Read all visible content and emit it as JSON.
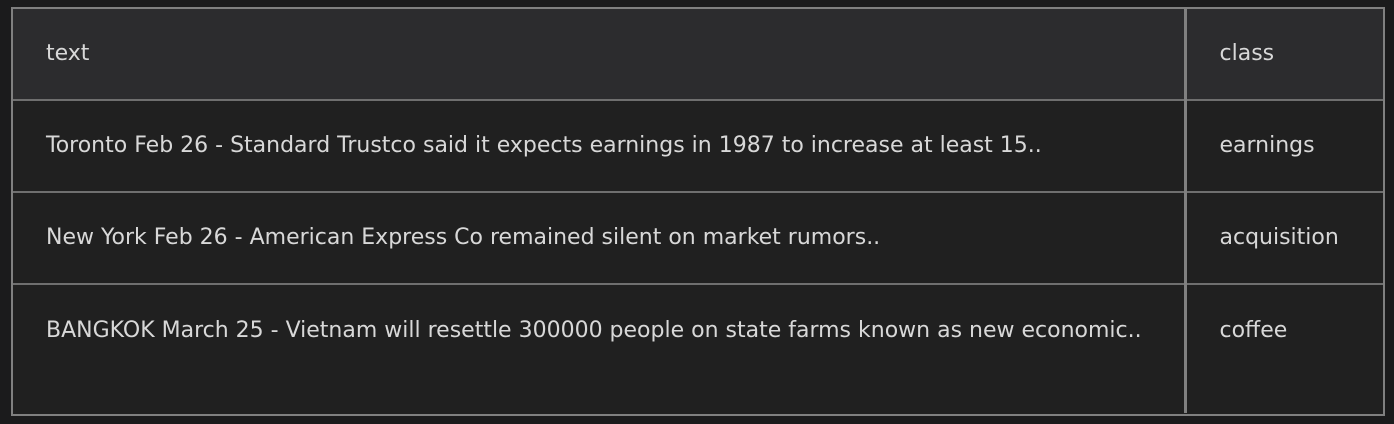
{
  "table": {
    "columns": [
      "text",
      "class"
    ],
    "rows": [
      {
        "text": "Toronto Feb 26 - Standard Trustco said it expects earnings in 1987 to increase at least 15..",
        "class": "earnings"
      },
      {
        "text": "New York Feb 26 - American Express Co remained silent on market rumors..",
        "class": "acquisition"
      },
      {
        "text": "BANGKOK March 25 - Vietnam will resettle 300000 people on state farms known as new economic..",
        "class": "coffee"
      }
    ]
  },
  "colors": {
    "page_background": "#1b1b1c",
    "header_background": "#2c2c2e",
    "row_background": "#202020",
    "border": "#808080",
    "text": "#d8d8d8"
  }
}
